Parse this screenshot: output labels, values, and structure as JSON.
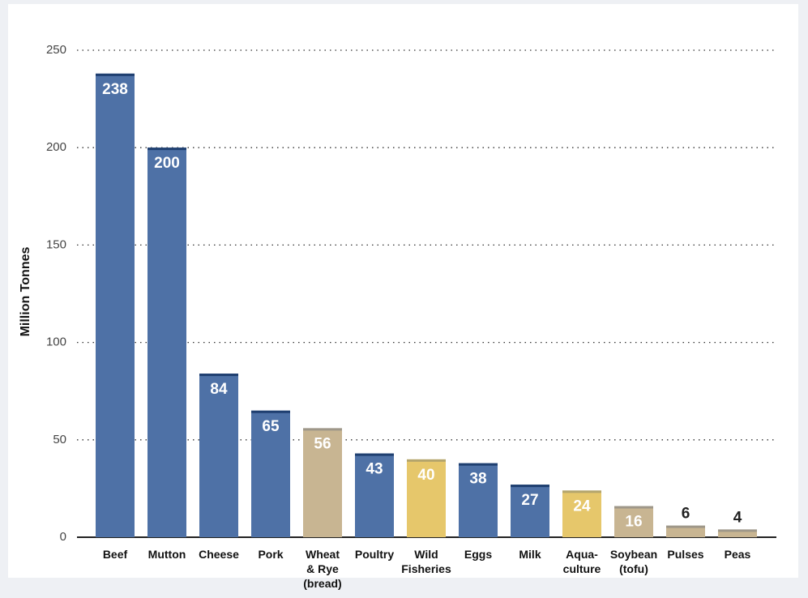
{
  "chart_data": {
    "type": "bar",
    "y_label": "Million Tonnes",
    "categories": [
      "Beef",
      "Mutton",
      "Cheese",
      "Pork",
      "Wheat\n& Rye\n(bread)",
      "Poultry",
      "Wild\nFisheries",
      "Eggs",
      "Milk",
      "Aqua-\nculture",
      "Soybean\n(tofu)",
      "Pulses",
      "Peas"
    ],
    "values": [
      238,
      200,
      84,
      65,
      56,
      43,
      40,
      38,
      27,
      24,
      16,
      6,
      4
    ],
    "colors": [
      "#4e71a6",
      "#4e71a6",
      "#4e71a6",
      "#4e71a6",
      "#c8b592",
      "#4e71a6",
      "#e6c76b",
      "#4e71a6",
      "#4e71a6",
      "#e6c76b",
      "#c8b592",
      "#c8b592",
      "#c8b592"
    ],
    "ylim": [
      0,
      250
    ],
    "yticks": [
      0,
      50,
      100,
      150,
      200,
      250
    ],
    "grid": true
  }
}
